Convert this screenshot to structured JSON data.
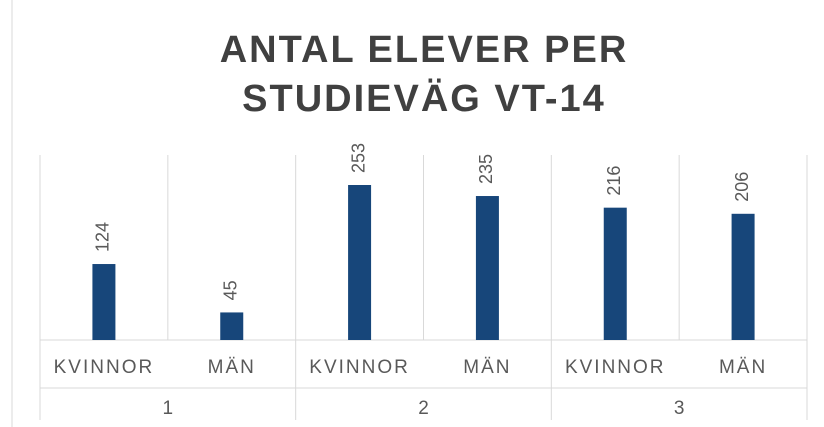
{
  "chart_data": {
    "type": "bar",
    "title": "ANTAL ELEVER PER STUDIEVÄG VT-14",
    "categories": [
      "KVINNOR",
      "MÄN",
      "KVINNOR",
      "MÄN",
      "KVINNOR",
      "MÄN"
    ],
    "groups": [
      "1",
      "2",
      "3"
    ],
    "values": [
      124,
      45,
      253,
      235,
      216,
      206
    ],
    "color": "#17467a"
  }
}
